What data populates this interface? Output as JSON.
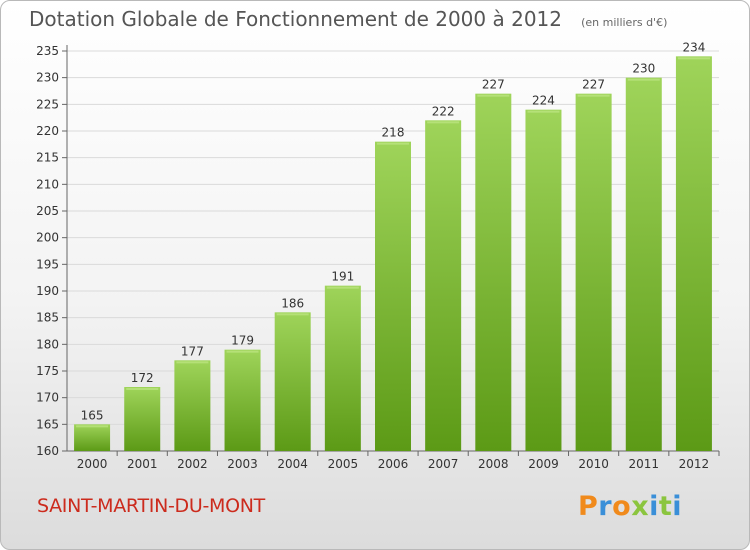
{
  "chart_data": {
    "type": "bar",
    "title": "Dotation Globale de Fonctionnement de 2000 à 2012",
    "subtitle": "(en milliers d'€)",
    "categories": [
      "2000",
      "2001",
      "2002",
      "2003",
      "2004",
      "2005",
      "2006",
      "2007",
      "2008",
      "2009",
      "2010",
      "2011",
      "2012"
    ],
    "values": [
      165,
      172,
      177,
      179,
      186,
      191,
      218,
      222,
      227,
      224,
      227,
      230,
      234
    ],
    "ylim": [
      160,
      235
    ],
    "yticks": [
      160,
      165,
      170,
      175,
      180,
      185,
      190,
      195,
      200,
      205,
      210,
      215,
      220,
      225,
      230,
      235
    ],
    "grid": true,
    "bar_color_top": "#9fd45a",
    "bar_color_bottom": "#5c9a16"
  },
  "commune": "SAINT-MARTIN-DU-MONT",
  "brand": {
    "letters": [
      "P",
      "r",
      "o",
      "x",
      "i",
      "t",
      "i"
    ],
    "colors": [
      "#f08a1c",
      "#3a8fd8",
      "#f08a1c",
      "#8bc53f",
      "#3a8fd8",
      "#8bc53f",
      "#3a8fd8"
    ]
  },
  "colors": {
    "commune": "#cc2b1d",
    "title": "#555555"
  }
}
